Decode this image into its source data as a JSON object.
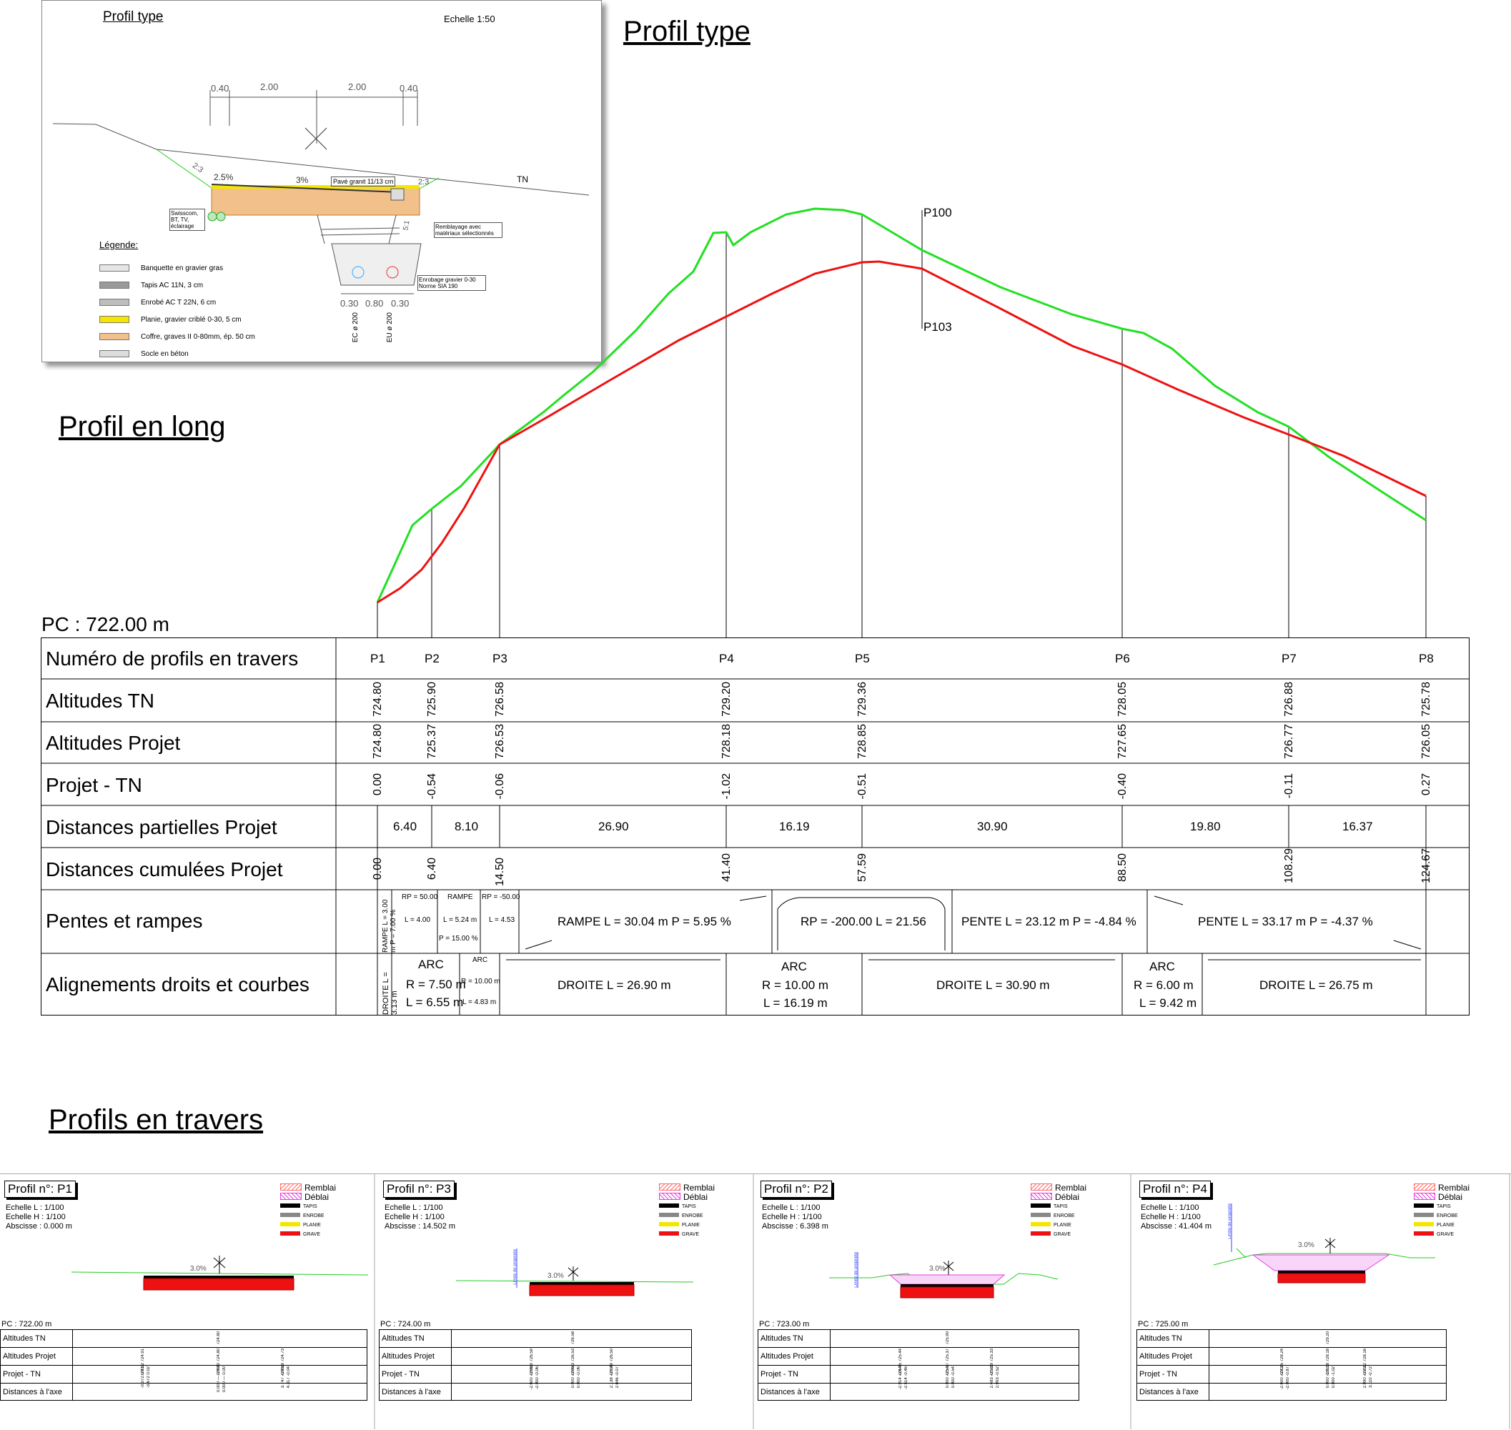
{
  "profil_type": {
    "title": "Profil type",
    "inset_title": "Profil type",
    "scale": "Echelle 1:50",
    "dims_top": [
      "0.40",
      "2.00",
      "2.00",
      "0.40"
    ],
    "slope_left": "2:3",
    "slope_right": "2:3",
    "cross_left": "2.5%",
    "cross_right": "3%",
    "paving": "Pavé granit 11/13 cm",
    "tn": "TN",
    "swisscom": "Swisscom, BT, TV, éclairage",
    "remblayage": "Remblayage avec matériaux sélectionnés",
    "trench_slope": "5:1",
    "enrobage": "Enrobage gravier 0-30 Norme SIA 190",
    "dims_bottom": [
      "0.30",
      "0.80",
      "0.30"
    ],
    "pipes": [
      "EC ø 200",
      "EU ø 200"
    ],
    "legend_title": "Légende:",
    "legend": [
      {
        "label": "Banquette en gravier gras",
        "color": "#e6e6e6"
      },
      {
        "label": "Tapis AC 11N, 3 cm",
        "color": "#9a9a9a"
      },
      {
        "label": "Enrobé AC T 22N, 6 cm",
        "color": "#bdbdbd"
      },
      {
        "label": "Planie, gravier criblé 0-30, 5 cm",
        "color": "#f5e600"
      },
      {
        "label": "Coffre, graves II 0-80mm, ép. 50 cm",
        "color": "#f2c08a"
      },
      {
        "label": "Socle en béton",
        "color": "#dcdcdc"
      }
    ]
  },
  "profil_long": {
    "title": "Profil en long",
    "pc": "PC : 722.00 m",
    "marker_top": "P100",
    "marker_bottom": "P103",
    "colors": {
      "tn": "#22e022",
      "projet": "#ee1111"
    },
    "table": {
      "row_labels": [
        "Numéro de profils en travers",
        "Altitudes TN",
        "Altitudes Projet",
        "Projet - TN",
        "Distances partielles Projet",
        "Distances cumulées Projet",
        "Pentes et rampes",
        "Alignements droits et courbes"
      ],
      "profiles": [
        "P1",
        "P2",
        "P3",
        "P4",
        "P5",
        "P6",
        "P7",
        "P8"
      ],
      "alt_tn": [
        "724.80",
        "725.90",
        "726.58",
        "729.20",
        "729.36",
        "728.05",
        "726.88",
        "725.78"
      ],
      "alt_projet": [
        "724.80",
        "725.37",
        "726.53",
        "728.18",
        "728.85",
        "727.65",
        "726.77",
        "726.05"
      ],
      "projet_tn": [
        "0.00",
        "-0.54",
        "-0.06",
        "-1.02",
        "-0.51",
        "-0.40",
        "-0.11",
        "0.27"
      ],
      "dist_partielles": [
        "6.40",
        "8.10",
        "26.90",
        "16.19",
        "30.90",
        "19.80",
        "16.37"
      ],
      "dist_cumulees": [
        "0.00",
        "6.40",
        "14.50",
        "41.40",
        "57.59",
        "88.50",
        "108.29",
        "124.67"
      ],
      "pentes": {
        "p1_vert": "RAMPE  L = 3.00 m  P = 7.00  %",
        "rp50": "RP = 50.00",
        "l400": "L = 4.00",
        "rampe_small": "RAMPE",
        "l524": "L = 5.24 m",
        "p1500": "P = 15.00  %",
        "rpm50": "RP = -50.00",
        "l453": "L = 4.53",
        "rampe_main": "RAMPE  L = 30.04 m  P = 5.95  %",
        "rp200": "RP = -200.00  L = 21.56",
        "pente1": "PENTE  L = 23.12 m  P = -4.84  %",
        "pente2": "PENTE  L = 33.17 m  P = -4.37  %"
      },
      "alignements": {
        "droite_vert": "DROITE  L = 3.13 m",
        "arc": "ARC",
        "arc1_r": "R = 7.50 m",
        "arc1_l": "L = 6.55 m",
        "arc2_r": "R = 10.00 m",
        "arc2_l": "L = 4.83 m",
        "droite1": "DROITE  L = 26.90 m",
        "arc3_r": "R = 10.00 m",
        "arc3_l": "L = 16.19 m",
        "droite2": "DROITE  L = 30.90 m",
        "arc4_r": "R = 6.00 m",
        "arc4_l": "L = 9.42 m",
        "droite3": "DROITE  L = 26.75 m"
      }
    }
  },
  "profils_travers": {
    "title": "Profils en travers",
    "legend": [
      {
        "label": "Remblai",
        "color": "#ff6b6b"
      },
      {
        "label": "Déblai",
        "color": "#e040e0"
      },
      {
        "label": "TAPIS",
        "color": "#000000"
      },
      {
        "label": "ENROBE",
        "color": "#888888"
      },
      {
        "label": "PLANIE",
        "color": "#f5e600"
      },
      {
        "label": "GRAVE",
        "color": "#ee1111"
      }
    ],
    "row_labels": [
      "Altitudes TN",
      "Altitudes Projet",
      "Projet - TN",
      "Distances à l'axe"
    ],
    "echelle_l": "Echelle L : 1/100",
    "echelle_h": "Echelle H : 1/100",
    "slope": "3.0%",
    "limite": "Limite de propriété",
    "panels": [
      {
        "title": "Profil n°: P1",
        "abscisse": "Abscisse : 0.000 m",
        "pc": "PC : 722.00 m",
        "tn": "724.80",
        "projet": [
          "724.92  724.91",
          "724.80  724.80",
          "724.69  724.73"
        ],
        "ptn": [
          "-0.072  0.01",
          "0.000 — 0.00",
          "3.747  -0.05"
        ],
        "dist": [
          "-3.672  0.02",
          "0.000 — 0.00",
          "4.317  -0.04"
        ]
      },
      {
        "title": "Profil n°: P3",
        "abscisse": "Abscisse : 14.502 m",
        "pc": "PC : 724.00 m",
        "tn": "726.58",
        "projet": [
          "726.60  726.59",
          "726.53  726.53",
          "726.49  726.50"
        ],
        "ptn": [
          "-2.600  -0.06",
          "0.000  -0.06",
          "2.138  -0.03"
        ],
        "dist": [
          "-2.000  -0.06",
          "0.000  -0.06",
          "2.646  -0.07"
        ]
      },
      {
        "title": "Profil n°: P2",
        "abscisse": "Abscisse : 6.398 m",
        "pc": "PC : 723.00 m",
        "tn": "725.90",
        "projet": [
          "725.45  725.44",
          "725.37  725.37",
          "725.29  725.33"
        ],
        "ptn": [
          "-2.914  -0.44",
          "0.000  -0.54",
          "2.483  -0.58"
        ],
        "dist": [
          "-2.514  -0.46",
          "0.000  -0.54",
          "2.993  -0.52"
        ]
      },
      {
        "title": "Profil n°: P4",
        "abscisse": "Abscisse : 41.404 m",
        "pc": "PC : 725.00 m",
        "tn": "729.20",
        "projet": [
          "728.25  728.24",
          "728.18  728.18",
          "728.12  728.16"
        ],
        "ptn": [
          "-2.600  -0.83",
          "0.000  -1.02",
          "2.090  -0.79"
        ],
        "dist": [
          "-2.000  -0.87",
          "0.000  -1.02",
          "3.110  -0.72"
        ]
      }
    ]
  }
}
